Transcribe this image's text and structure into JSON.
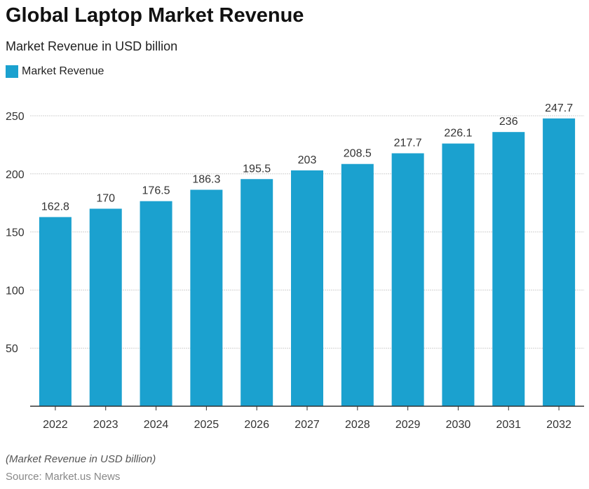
{
  "chart_data": {
    "type": "bar",
    "title": "Global Laptop Market Revenue",
    "subtitle": "Market Revenue in USD billion",
    "categories": [
      "2022",
      "2023",
      "2024",
      "2025",
      "2026",
      "2027",
      "2028",
      "2029",
      "2030",
      "2031",
      "2032"
    ],
    "series": [
      {
        "name": "Market Revenue",
        "values": [
          162.8,
          170,
          176.5,
          186.3,
          195.5,
          203,
          208.5,
          217.7,
          226.1,
          236,
          247.7
        ]
      }
    ],
    "value_labels": [
      "162.8",
      "170",
      "176.5",
      "186.3",
      "195.5",
      "203",
      "208.5",
      "217.7",
      "226.1",
      "236",
      "247.7"
    ],
    "ylim": [
      0,
      250
    ],
    "yticks": [
      50,
      100,
      150,
      200,
      250
    ],
    "grid": true,
    "legend_position": "top-left",
    "bar_color": "#1ba1cf",
    "note": "(Market Revenue in USD billion)",
    "source": "Source: Market.us News"
  }
}
